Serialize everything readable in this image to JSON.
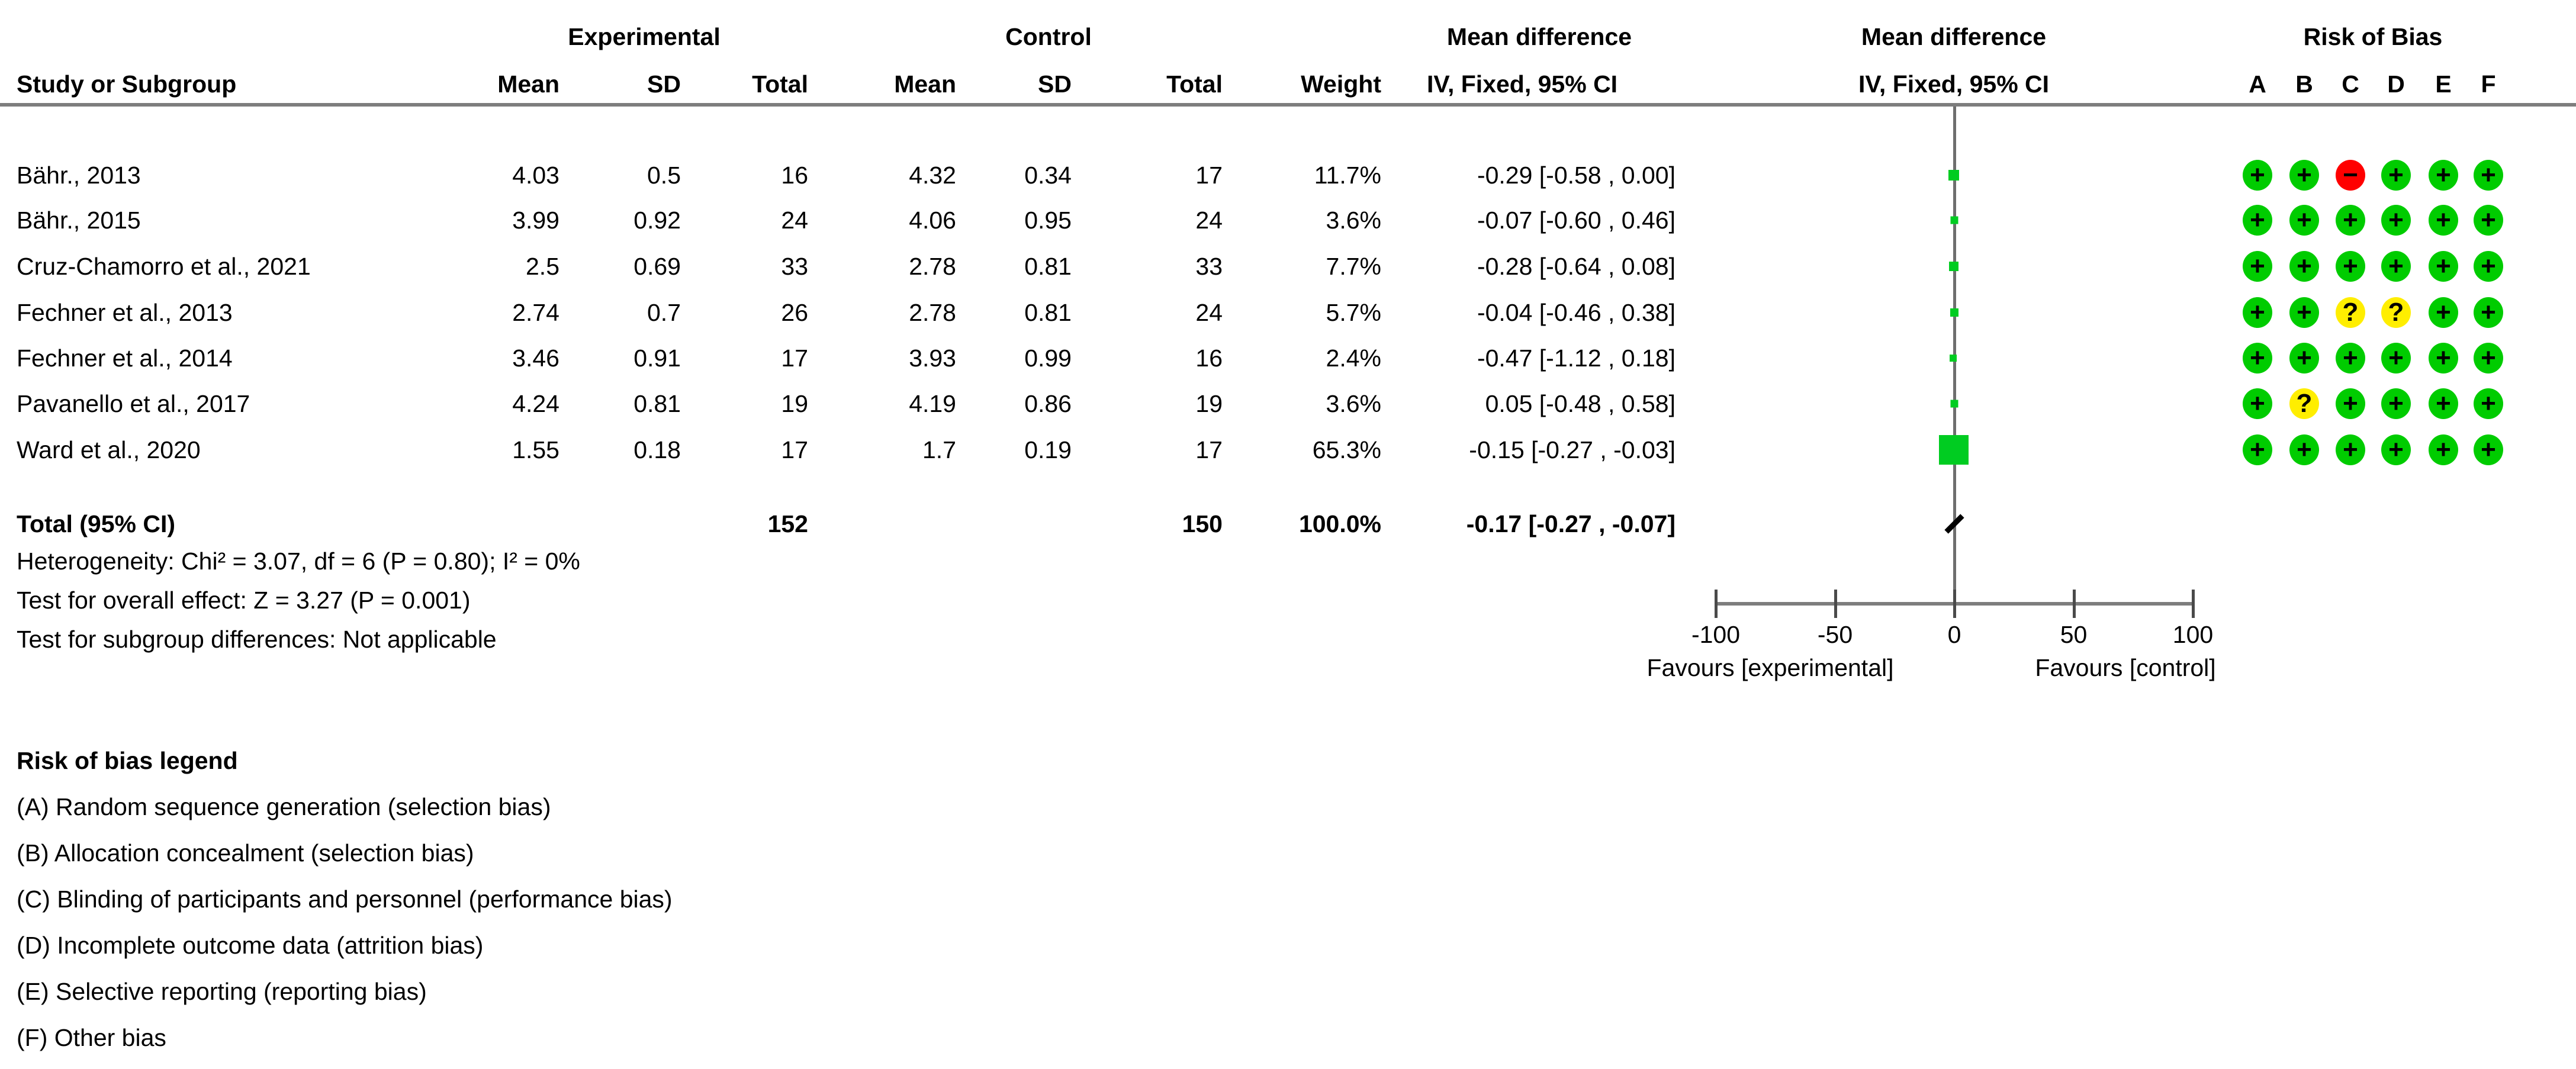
{
  "header": {
    "study_col": "Study or Subgroup",
    "group_experimental": "Experimental",
    "group_control": "Control",
    "mean": "Mean",
    "sd": "SD",
    "total": "Total",
    "weight": "Weight",
    "md_table_title": "Mean difference",
    "md_table_sub": "IV, Fixed, 95% CI",
    "md_plot_title": "Mean difference",
    "md_plot_sub": "IV, Fixed, 95% CI",
    "rob_title": "Risk of Bias",
    "rob_letters": [
      "A",
      "B",
      "C",
      "D",
      "E",
      "F"
    ]
  },
  "chart_data": {
    "type": "scatter",
    "subtype": "forest-plot",
    "effect_measure": "Mean difference, IV, Fixed, 95% CI",
    "axis": {
      "min": -100,
      "max": 100,
      "ticks": [
        -100,
        -50,
        0,
        50,
        100
      ],
      "favours_left": "Favours [experimental]",
      "favours_right": "Favours [control]"
    },
    "studies": [
      {
        "name": "Bähr., 2013",
        "e_mean": "4.03",
        "e_sd": "0.5",
        "e_total": "16",
        "c_mean": "4.32",
        "c_sd": "0.34",
        "c_total": "17",
        "weight": "11.7%",
        "ci_text": "-0.29 [-0.58 , 0.00]",
        "md": -0.29,
        "weight_val": 11.7,
        "rob": [
          "+",
          "+",
          "-",
          "+",
          "+",
          "+"
        ]
      },
      {
        "name": "Bähr., 2015",
        "e_mean": "3.99",
        "e_sd": "0.92",
        "e_total": "24",
        "c_mean": "4.06",
        "c_sd": "0.95",
        "c_total": "24",
        "weight": "3.6%",
        "ci_text": "-0.07 [-0.60 , 0.46]",
        "md": -0.07,
        "weight_val": 3.6,
        "rob": [
          "+",
          "+",
          "+",
          "+",
          "+",
          "+"
        ]
      },
      {
        "name": "Cruz-Chamorro et al., 2021",
        "e_mean": "2.5",
        "e_sd": "0.69",
        "e_total": "33",
        "c_mean": "2.78",
        "c_sd": "0.81",
        "c_total": "33",
        "weight": "7.7%",
        "ci_text": "-0.28 [-0.64 , 0.08]",
        "md": -0.28,
        "weight_val": 7.7,
        "rob": [
          "+",
          "+",
          "+",
          "+",
          "+",
          "+"
        ]
      },
      {
        "name": "Fechner et al., 2013",
        "e_mean": "2.74",
        "e_sd": "0.7",
        "e_total": "26",
        "c_mean": "2.78",
        "c_sd": "0.81",
        "c_total": "24",
        "weight": "5.7%",
        "ci_text": "-0.04 [-0.46 , 0.38]",
        "md": -0.04,
        "weight_val": 5.7,
        "rob": [
          "+",
          "+",
          "?",
          "?",
          "+",
          "+"
        ]
      },
      {
        "name": "Fechner et al., 2014",
        "e_mean": "3.46",
        "e_sd": "0.91",
        "e_total": "17",
        "c_mean": "3.93",
        "c_sd": "0.99",
        "c_total": "16",
        "weight": "2.4%",
        "ci_text": "-0.47 [-1.12 , 0.18]",
        "md": -0.47,
        "weight_val": 2.4,
        "rob": [
          "+",
          "+",
          "+",
          "+",
          "+",
          "+"
        ]
      },
      {
        "name": "Pavanello et al., 2017",
        "e_mean": "4.24",
        "e_sd": "0.81",
        "e_total": "19",
        "c_mean": "4.19",
        "c_sd": "0.86",
        "c_total": "19",
        "weight": "3.6%",
        "ci_text": "0.05 [-0.48 , 0.58]",
        "md": 0.05,
        "weight_val": 3.6,
        "rob": [
          "+",
          "?",
          "+",
          "+",
          "+",
          "+"
        ]
      },
      {
        "name": "Ward et al., 2020",
        "e_mean": "1.55",
        "e_sd": "0.18",
        "e_total": "17",
        "c_mean": "1.7",
        "c_sd": "0.19",
        "c_total": "17",
        "weight": "65.3%",
        "ci_text": "-0.15 [-0.27 , -0.03]",
        "md": -0.15,
        "weight_val": 65.3,
        "rob": [
          "+",
          "+",
          "+",
          "+",
          "+",
          "+"
        ]
      }
    ],
    "total": {
      "label": "Total (95% CI)",
      "e_total": "152",
      "c_total": "150",
      "weight": "100.0%",
      "ci_text": "-0.17 [-0.27 , -0.07]",
      "md": -0.17
    },
    "footer": {
      "heterogeneity": "Heterogeneity: Chi² = 3.07, df = 6 (P = 0.80); I² = 0%",
      "overall_effect": "Test for overall effect: Z = 3.27 (P = 0.001)",
      "subgroup": "Test for subgroup differences: Not applicable"
    }
  },
  "legend": {
    "title": "Risk of bias legend",
    "items": [
      "(A) Random sequence generation (selection bias)",
      "(B) Allocation concealment (selection bias)",
      "(C) Blinding of participants and personnel (performance bias)",
      "(D) Incomplete outcome data (attrition bias)",
      "(E) Selective reporting (reporting bias)",
      "(F) Other bias"
    ]
  },
  "colors": {
    "low_risk": "#00CC00",
    "unclear_risk": "#FFEE00",
    "high_risk": "#FF0000",
    "marker_green": "#00CC21",
    "line_gray": "#7d7d7d"
  }
}
